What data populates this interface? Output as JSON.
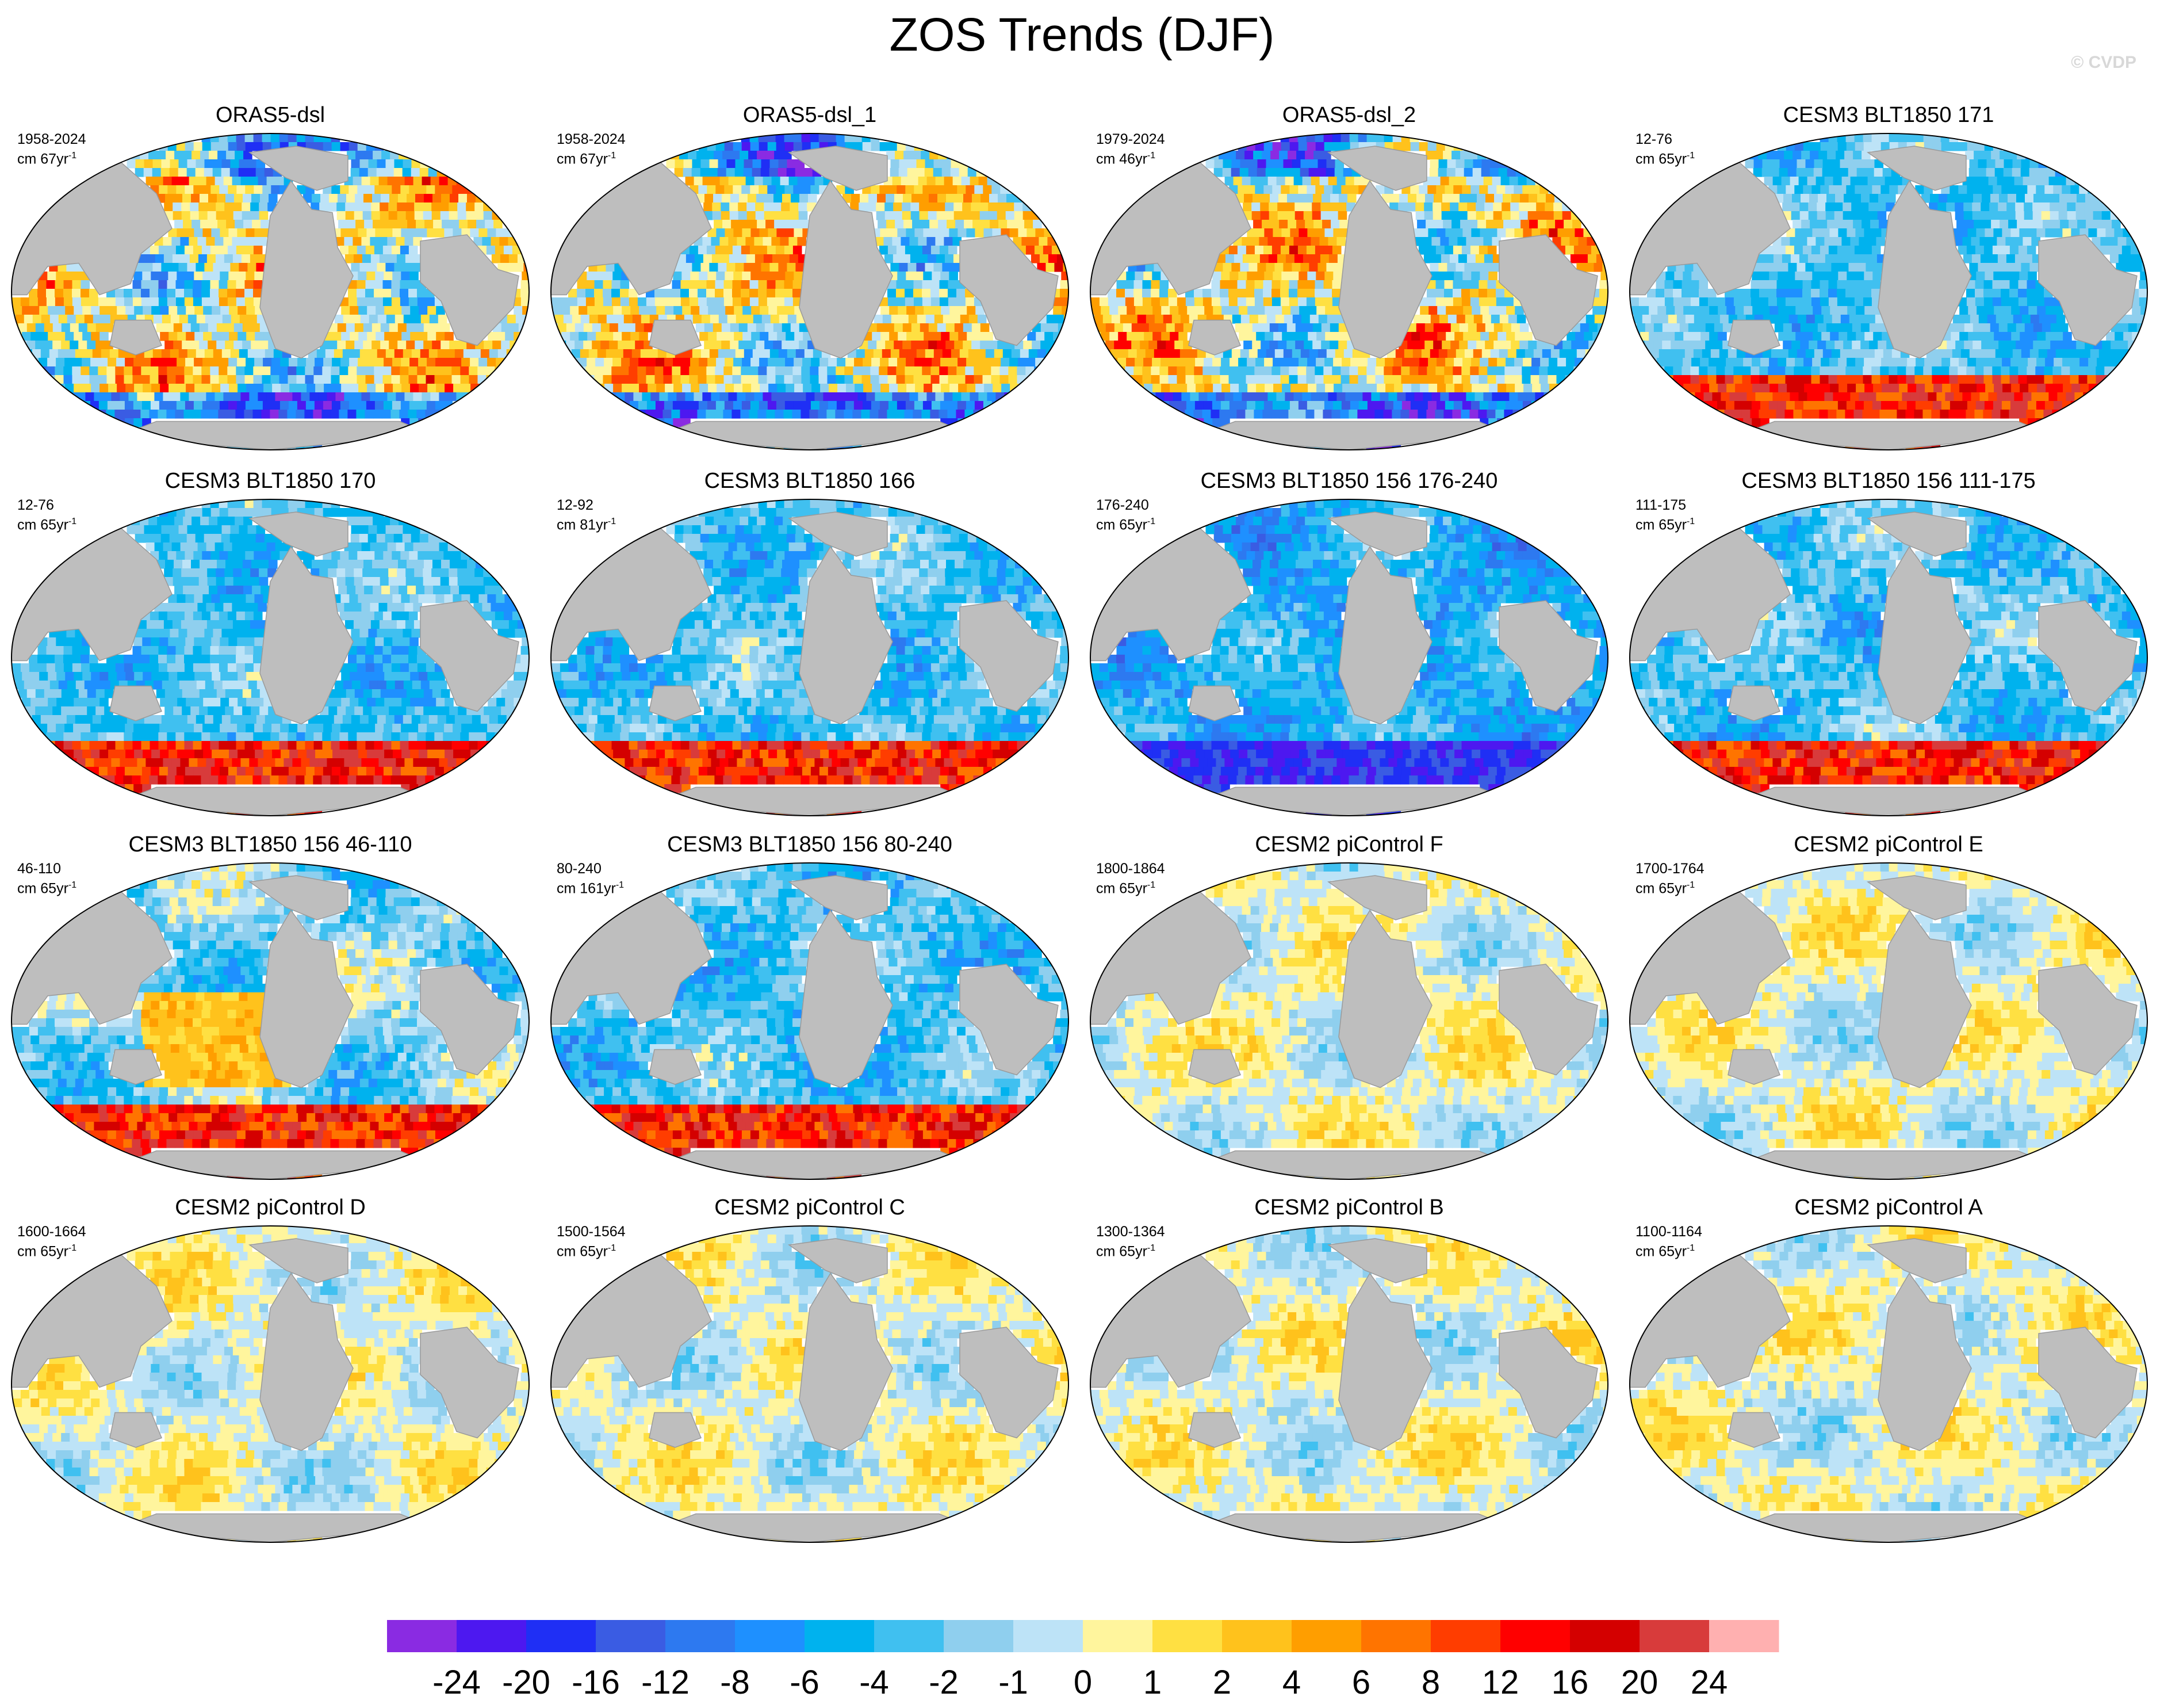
{
  "title": "ZOS Trends (DJF)",
  "copyright": "© CVDP",
  "chart_data": {
    "type": "heatmap",
    "title": "ZOS Trends (DJF)",
    "variable": "ZOS",
    "season": "DJF",
    "projection": "Robinson global maps, Pacific-centered",
    "panels": [
      {
        "title": "ORAS5-dsl",
        "years": "1958-2024",
        "units": "cm 67yr",
        "pattern": "mixed"
      },
      {
        "title": "ORAS5-dsl_1",
        "years": "1958-2024",
        "units": "cm 67yr",
        "pattern": "mixed"
      },
      {
        "title": "ORAS5-dsl_2",
        "years": "1979-2024",
        "units": "cm 46yr",
        "pattern": "mixed"
      },
      {
        "title": "CESM3 BLT1850 171",
        "years": "12-76",
        "units": "cm 65yr",
        "pattern": "negative-south-positive"
      },
      {
        "title": "CESM3 BLT1850 170",
        "years": "12-76",
        "units": "cm 65yr",
        "pattern": "negative-south-positive"
      },
      {
        "title": "CESM3 BLT1850 166",
        "years": "12-92",
        "units": "cm 81yr",
        "pattern": "negative-south-positive"
      },
      {
        "title": "CESM3 BLT1850 156 176-240",
        "years": "176-240",
        "units": "cm 65yr",
        "pattern": "negative"
      },
      {
        "title": "CESM3 BLT1850 156 111-175",
        "years": "111-175",
        "units": "cm 65yr",
        "pattern": "negative-south-positive"
      },
      {
        "title": "CESM3 BLT1850 156 46-110",
        "years": "46-110",
        "units": "cm 65yr",
        "pattern": "positive-pacific"
      },
      {
        "title": "CESM3 BLT1850 156 80-240",
        "years": "80-240",
        "units": "cm 161yr",
        "pattern": "negative-south-positive"
      },
      {
        "title": "CESM2 piControl F",
        "years": "1800-1864",
        "units": "cm 65yr",
        "pattern": "weak"
      },
      {
        "title": "CESM2 piControl E",
        "years": "1700-1764",
        "units": "cm 65yr",
        "pattern": "weak"
      },
      {
        "title": "CESM2 piControl D",
        "years": "1600-1664",
        "units": "cm 65yr",
        "pattern": "weak"
      },
      {
        "title": "CESM2 piControl C",
        "years": "1500-1564",
        "units": "cm 65yr",
        "pattern": "weak"
      },
      {
        "title": "CESM2 piControl B",
        "years": "1300-1364",
        "units": "cm 65yr",
        "pattern": "weak"
      },
      {
        "title": "CESM2 piControl A",
        "years": "1100-1164",
        "units": "cm 65yr",
        "pattern": "weak"
      }
    ],
    "colorbar": {
      "levels": [
        "-24",
        "-20",
        "-16",
        "-12",
        "-8",
        "-6",
        "-4",
        "-2",
        "-1",
        "0",
        "1",
        "2",
        "4",
        "6",
        "8",
        "12",
        "16",
        "20",
        "24"
      ],
      "colors": [
        "#8a2be2",
        "#4d18f0",
        "#1f2ff5",
        "#3a5ce3",
        "#2d79f0",
        "#1e90ff",
        "#00b2ee",
        "#40c0f0",
        "#8fcfee",
        "#bde3f7",
        "#fff59d",
        "#ffe042",
        "#ffc21c",
        "#ff9e00",
        "#ff7400",
        "#ff3d00",
        "#ff0000",
        "#d40000",
        "#d83b3b",
        "#ffb0b0"
      ]
    }
  }
}
